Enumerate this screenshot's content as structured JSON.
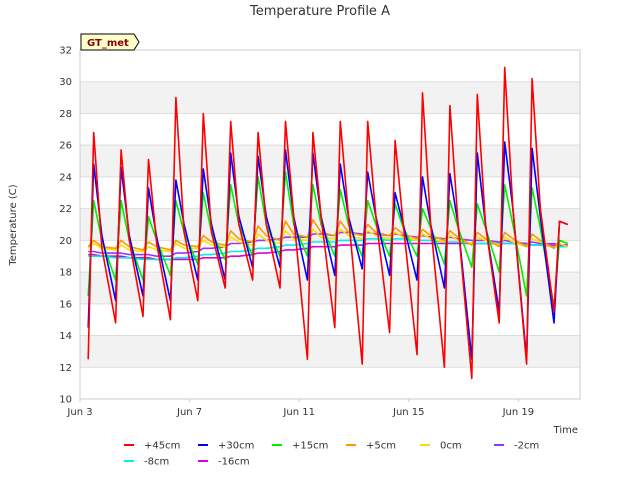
{
  "chart_data": {
    "type": "line",
    "title": "Temperature Profile A",
    "xlabel": "Time",
    "ylabel": "Temperature (C)",
    "badge": "GT_met",
    "x_domain_days": [
      3.0,
      21.25
    ],
    "ylim": [
      10,
      32
    ],
    "yticks": [
      10,
      12,
      14,
      16,
      18,
      20,
      22,
      24,
      26,
      28,
      30,
      32
    ],
    "xticks": [
      {
        "label": "Jun 3",
        "day": 3
      },
      {
        "label": "Jun 7",
        "day": 7
      },
      {
        "label": "Jun 11",
        "day": 11
      },
      {
        "label": "Jun 15",
        "day": 15
      },
      {
        "label": "Jun 19",
        "day": 19
      }
    ],
    "band_fill": "#f2f2f2",
    "grid_color": "#dddddd",
    "legend_position": "bottom",
    "days": [
      3.3,
      3.5,
      3.8,
      4.3,
      4.5,
      4.8,
      5.3,
      5.5,
      5.8,
      6.3,
      6.5,
      6.8,
      7.3,
      7.5,
      7.8,
      8.3,
      8.5,
      8.8,
      9.3,
      9.5,
      9.8,
      10.3,
      10.5,
      10.8,
      11.3,
      11.5,
      11.8,
      12.3,
      12.5,
      12.8,
      13.3,
      13.5,
      13.8,
      14.3,
      14.5,
      14.8,
      15.3,
      15.5,
      15.8,
      16.3,
      16.5,
      16.8,
      17.3,
      17.5,
      17.8,
      18.3,
      18.5,
      18.8,
      19.3,
      19.5,
      19.8,
      20.3,
      20.5,
      20.8
    ],
    "series": [
      {
        "name": "+45cm",
        "color": "#ff0000",
        "values": [
          12.5,
          26.8,
          19.5,
          14.8,
          25.7,
          20.0,
          15.2,
          25.1,
          19.8,
          15.0,
          29.0,
          20.5,
          16.2,
          28.0,
          20.5,
          17.0,
          27.5,
          21.0,
          17.5,
          26.8,
          21.0,
          17.0,
          27.5,
          21.5,
          12.5,
          26.8,
          21.5,
          14.5,
          27.5,
          21.5,
          12.2,
          27.5,
          21.5,
          14.2,
          26.3,
          21.0,
          12.8,
          29.3,
          21.0,
          12.0,
          28.5,
          21.0,
          11.3,
          29.2,
          21.0,
          14.8,
          30.9,
          22.0,
          12.2,
          30.2,
          22.0,
          15.5,
          21.2,
          21.0
        ]
      },
      {
        "name": "+30cm",
        "color": "#0000ff",
        "values": [
          14.5,
          24.8,
          20.3,
          16.2,
          24.6,
          20.3,
          16.5,
          23.3,
          20.2,
          16.2,
          23.8,
          21.0,
          17.5,
          24.5,
          21.0,
          17.5,
          25.5,
          21.5,
          18.3,
          25.3,
          21.5,
          18.3,
          25.7,
          21.5,
          17.5,
          25.5,
          21.5,
          17.8,
          24.8,
          21.5,
          18.2,
          24.3,
          21.5,
          17.8,
          23.0,
          21.0,
          17.5,
          24.0,
          21.0,
          17.0,
          24.2,
          21.0,
          12.5,
          25.5,
          21.0,
          15.5,
          26.2,
          22.0,
          12.5,
          25.8,
          21.5,
          14.8,
          21.2,
          21.0
        ]
      },
      {
        "name": "+15cm",
        "color": "#00ee00",
        "values": [
          16.5,
          22.5,
          20.0,
          17.5,
          22.5,
          20.0,
          17.5,
          21.5,
          20.0,
          17.8,
          22.5,
          20.5,
          18.5,
          23.0,
          20.5,
          18.8,
          23.5,
          21.0,
          19.0,
          24.0,
          21.0,
          19.0,
          24.3,
          21.0,
          19.0,
          23.5,
          21.0,
          19.0,
          23.2,
          21.0,
          19.0,
          22.5,
          21.0,
          19.0,
          22.3,
          20.8,
          19.0,
          22.0,
          20.8,
          18.5,
          22.5,
          20.8,
          18.3,
          22.3,
          20.8,
          18.0,
          23.5,
          21.0,
          16.5,
          23.3,
          20.8,
          15.8,
          20.0,
          19.8
        ]
      },
      {
        "name": "+5cm",
        "color": "#ff9900",
        "values": [
          19.6,
          20.0,
          19.6,
          19.5,
          20.0,
          19.6,
          19.4,
          19.9,
          19.6,
          19.4,
          20.0,
          19.7,
          19.6,
          20.3,
          19.9,
          19.7,
          20.6,
          20.1,
          19.9,
          20.9,
          20.3,
          20.0,
          21.2,
          20.4,
          20.2,
          21.3,
          20.5,
          20.3,
          21.2,
          20.5,
          20.3,
          21.0,
          20.5,
          20.3,
          20.8,
          20.4,
          20.1,
          20.7,
          20.3,
          20.0,
          20.6,
          20.2,
          19.7,
          20.5,
          20.1,
          19.6,
          20.5,
          20.1,
          19.6,
          20.4,
          20.0,
          19.5,
          20.0,
          19.8
        ]
      },
      {
        "name": "0cm",
        "color": "#ffdd00",
        "values": [
          19.5,
          19.8,
          19.5,
          19.4,
          19.7,
          19.4,
          19.3,
          19.6,
          19.4,
          19.3,
          19.8,
          19.5,
          19.5,
          20.0,
          19.7,
          19.6,
          20.2,
          19.9,
          19.7,
          20.4,
          20.0,
          19.8,
          20.6,
          20.1,
          20.0,
          20.7,
          20.2,
          20.1,
          20.7,
          20.3,
          20.1,
          20.6,
          20.3,
          20.1,
          20.5,
          20.2,
          20.0,
          20.4,
          20.1,
          19.9,
          20.3,
          20.0,
          19.8,
          20.2,
          20.0,
          19.7,
          20.2,
          19.9,
          19.6,
          20.1,
          19.9,
          19.5,
          19.8,
          19.6
        ]
      },
      {
        "name": "-2cm",
        "color": "#9933ff",
        "values": [
          19.3,
          19.3,
          19.2,
          19.2,
          19.2,
          19.1,
          19.1,
          19.1,
          19.0,
          19.0,
          19.2,
          19.2,
          19.3,
          19.5,
          19.5,
          19.6,
          19.8,
          19.8,
          19.9,
          20.0,
          20.0,
          20.1,
          20.2,
          20.2,
          20.2,
          20.4,
          20.4,
          20.3,
          20.5,
          20.5,
          20.4,
          20.5,
          20.4,
          20.3,
          20.4,
          20.3,
          20.2,
          20.3,
          20.2,
          20.1,
          20.2,
          20.1,
          20.0,
          20.0,
          20.0,
          19.9,
          20.0,
          19.9,
          19.8,
          19.9,
          19.8,
          19.8,
          19.7,
          19.7
        ]
      },
      {
        "name": "-8cm",
        "color": "#00eeee",
        "values": [
          19.0,
          19.0,
          19.0,
          18.9,
          18.9,
          18.9,
          18.8,
          18.8,
          18.8,
          18.8,
          18.9,
          18.9,
          19.0,
          19.1,
          19.1,
          19.2,
          19.3,
          19.3,
          19.4,
          19.5,
          19.5,
          19.6,
          19.7,
          19.7,
          19.8,
          19.9,
          19.9,
          19.9,
          20.0,
          20.0,
          20.0,
          20.1,
          20.1,
          20.0,
          20.1,
          20.1,
          20.0,
          20.0,
          20.0,
          19.9,
          19.9,
          19.9,
          19.8,
          19.8,
          19.8,
          19.8,
          19.8,
          19.8,
          19.7,
          19.7,
          19.7,
          19.6,
          19.6,
          19.6
        ]
      },
      {
        "name": "-16cm",
        "color": "#dd00dd",
        "values": [
          19.1,
          19.1,
          19.0,
          19.0,
          19.0,
          18.9,
          18.9,
          18.9,
          18.8,
          18.8,
          18.8,
          18.8,
          18.8,
          18.9,
          18.9,
          18.9,
          19.0,
          19.0,
          19.1,
          19.2,
          19.2,
          19.3,
          19.4,
          19.4,
          19.5,
          19.6,
          19.6,
          19.6,
          19.7,
          19.7,
          19.7,
          19.8,
          19.8,
          19.8,
          19.8,
          19.8,
          19.8,
          19.8,
          19.8,
          19.8,
          19.8,
          19.8,
          19.8,
          19.8,
          19.8,
          19.8,
          19.8,
          19.8,
          19.8,
          19.7,
          19.7,
          19.7,
          19.7,
          19.7
        ]
      }
    ]
  }
}
